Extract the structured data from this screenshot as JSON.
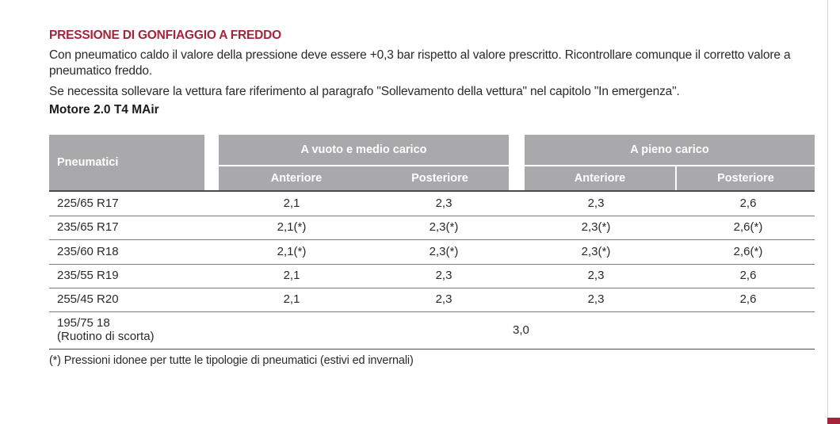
{
  "section_title": "PRESSIONE DI GONFIAGGIO A FREDDO",
  "paragraph1": "Con pneumatico caldo il valore della pressione deve essere +0,3 bar rispetto al valore prescritto. Ricontrollare comunque il corretto valore a pneumatico freddo.",
  "paragraph2": "Se necessita sollevare la vettura fare riferimento al paragrafo \"Sollevamento della vettura\" nel capitolo \"In emergenza\".",
  "engine_title": "Motore 2.0 T4 MAir",
  "table": {
    "col_tyres": "Pneumatici",
    "group1": "A vuoto e medio carico",
    "group2": "A pieno carico",
    "sub1": "Anteriore",
    "sub2": "Posteriore",
    "sub3": "Anteriore",
    "sub4": "Posteriore",
    "rows": [
      {
        "tyre": "225/65 R17",
        "v1": "2,1",
        "v2": "2,3",
        "v3": "2,3",
        "v4": "2,6"
      },
      {
        "tyre": "235/65 R17",
        "v1": "2,1(*)",
        "v2": "2,3(*)",
        "v3": "2,3(*)",
        "v4": "2,6(*)"
      },
      {
        "tyre": "235/60 R18",
        "v1": "2,1(*)",
        "v2": "2,3(*)",
        "v3": "2,3(*)",
        "v4": "2,6(*)"
      },
      {
        "tyre": "235/55 R19",
        "v1": "2,1",
        "v2": "2,3",
        "v3": "2,3",
        "v4": "2,6"
      },
      {
        "tyre": "255/45 R20",
        "v1": "2,1",
        "v2": "2,3",
        "v3": "2,3",
        "v4": "2,6"
      }
    ],
    "spare": {
      "size": "195/75 18",
      "note": "(Ruotino di scorta)",
      "value": "3,0"
    }
  },
  "footnote": "(*) Pressioni idonee per tutte le tipologie di pneumatici (estivi ed invernali)",
  "colors": {
    "title_red": "#a3243b",
    "header_grey": "#a9a9ab"
  }
}
